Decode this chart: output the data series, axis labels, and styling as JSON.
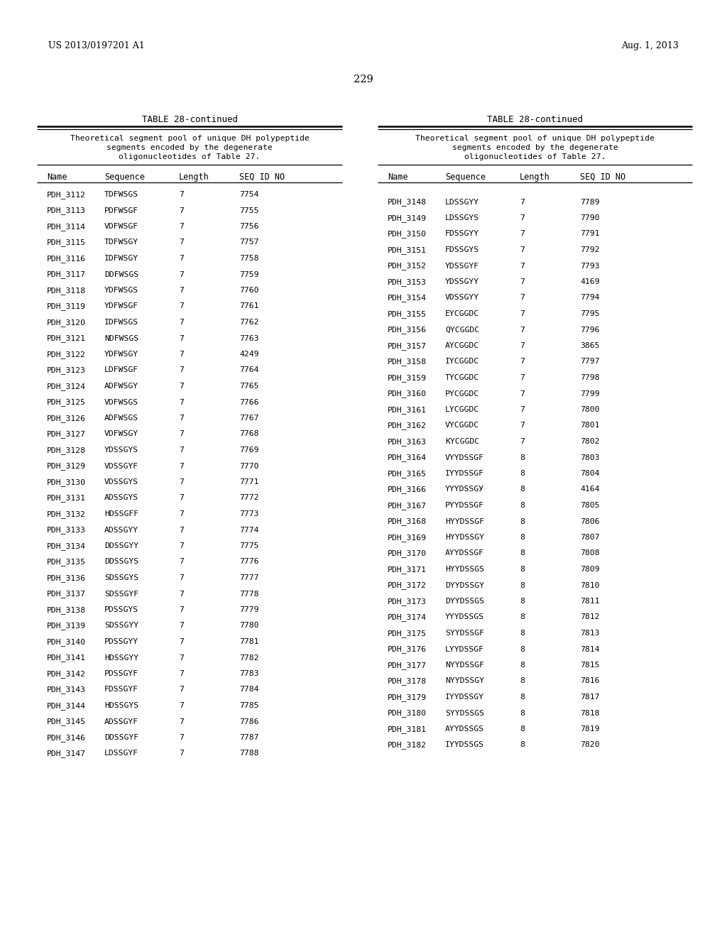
{
  "page_header_left": "US 2013/0197201 A1",
  "page_header_right": "Aug. 1, 2013",
  "page_number": "229",
  "table_title": "TABLE 28-continued",
  "table_description_lines": [
    "Theoretical segment pool of unique DH polypeptide",
    "segments encoded by the degenerate",
    "oligonucleotides of Table 27."
  ],
  "col_headers": [
    "Name",
    "Sequence",
    "Length",
    "SEQ ID NO"
  ],
  "left_data": [
    [
      "PDH_3112",
      "TDFWSGS",
      "7",
      "7754"
    ],
    [
      "PDH_3113",
      "PDFWSGF",
      "7",
      "7755"
    ],
    [
      "PDH_3114",
      "VDFWSGF",
      "7",
      "7756"
    ],
    [
      "PDH_3115",
      "TDFWSGY",
      "7",
      "7757"
    ],
    [
      "PDH_3116",
      "IDFWSGY",
      "7",
      "7758"
    ],
    [
      "PDH_3117",
      "DDFWSGS",
      "7",
      "7759"
    ],
    [
      "PDH_3118",
      "YDFWSGS",
      "7",
      "7760"
    ],
    [
      "PDH_3119",
      "YDFWSGF",
      "7",
      "7761"
    ],
    [
      "PDH_3120",
      "IDFWSGS",
      "7",
      "7762"
    ],
    [
      "PDH_3121",
      "NDFWSGS",
      "7",
      "7763"
    ],
    [
      "PDH_3122",
      "YDFWSGY",
      "7",
      "4249"
    ],
    [
      "PDH_3123",
      "LDFWSGF",
      "7",
      "7764"
    ],
    [
      "PDH_3124",
      "ADFWSGY",
      "7",
      "7765"
    ],
    [
      "PDH_3125",
      "VDFWSGS",
      "7",
      "7766"
    ],
    [
      "PDH_3126",
      "ADFWSGS",
      "7",
      "7767"
    ],
    [
      "PDH_3127",
      "VDFWSGY",
      "7",
      "7768"
    ],
    [
      "PDH_3128",
      "YDSSGYS",
      "7",
      "7769"
    ],
    [
      "PDH_3129",
      "VDSSGYF",
      "7",
      "7770"
    ],
    [
      "PDH_3130",
      "VDSSGYS",
      "7",
      "7771"
    ],
    [
      "PDH_3131",
      "ADSSGYS",
      "7",
      "7772"
    ],
    [
      "PDH_3132",
      "HDSSGFF",
      "7",
      "7773"
    ],
    [
      "PDH_3133",
      "ADSSGYY",
      "7",
      "7774"
    ],
    [
      "PDH_3134",
      "DDSSGYY",
      "7",
      "7775"
    ],
    [
      "PDH_3135",
      "DDSSGYS",
      "7",
      "7776"
    ],
    [
      "PDH_3136",
      "SDSSGYS",
      "7",
      "7777"
    ],
    [
      "PDH_3137",
      "SDSSGYF",
      "7",
      "7778"
    ],
    [
      "PDH_3138",
      "PDSSGYS",
      "7",
      "7779"
    ],
    [
      "PDH_3139",
      "SDSSGYY",
      "7",
      "7780"
    ],
    [
      "PDH_3140",
      "PDSSGYY",
      "7",
      "7781"
    ],
    [
      "PDH_3141",
      "HDSSGYY",
      "7",
      "7782"
    ],
    [
      "PDH_3142",
      "PDSSGYF",
      "7",
      "7783"
    ],
    [
      "PDH_3143",
      "FDSSGYF",
      "7",
      "7784"
    ],
    [
      "PDH_3144",
      "HDSSGYS",
      "7",
      "7785"
    ],
    [
      "PDH_3145",
      "ADSSGYF",
      "7",
      "7786"
    ],
    [
      "PDH_3146",
      "DDSSGYF",
      "7",
      "7787"
    ],
    [
      "PDH_3147",
      "LDSSGYF",
      "7",
      "7788"
    ]
  ],
  "right_data": [
    [
      "PDH_3148",
      "LDSSGYY",
      "7",
      "7789"
    ],
    [
      "PDH_3149",
      "LDSSGYS",
      "7",
      "7790"
    ],
    [
      "PDH_3150",
      "FDSSGYY",
      "7",
      "7791"
    ],
    [
      "PDH_3151",
      "FDSSGYS",
      "7",
      "7792"
    ],
    [
      "PDH_3152",
      "YDSSGYF",
      "7",
      "7793"
    ],
    [
      "PDH_3153",
      "YDSSGYY",
      "7",
      "4169"
    ],
    [
      "PDH_3154",
      "VDSSGYY",
      "7",
      "7794"
    ],
    [
      "PDH_3155",
      "EYCGGDC",
      "7",
      "7795"
    ],
    [
      "PDH_3156",
      "QYCGGDC",
      "7",
      "7796"
    ],
    [
      "PDH_3157",
      "AYCGGDC",
      "7",
      "3865"
    ],
    [
      "PDH_3158",
      "IYCGGDC",
      "7",
      "7797"
    ],
    [
      "PDH_3159",
      "TYCGGDC",
      "7",
      "7798"
    ],
    [
      "PDH_3160",
      "PYCGGDC",
      "7",
      "7799"
    ],
    [
      "PDH_3161",
      "LYCGGDC",
      "7",
      "7800"
    ],
    [
      "PDH_3162",
      "VYCGGDC",
      "7",
      "7801"
    ],
    [
      "PDH_3163",
      "KYCGGDC",
      "7",
      "7802"
    ],
    [
      "PDH_3164",
      "VYYDSSGF",
      "8",
      "7803"
    ],
    [
      "PDH_3165",
      "IYYDSSGF",
      "8",
      "7804"
    ],
    [
      "PDH_3166",
      "YYYDSSGУ",
      "8",
      "4164"
    ],
    [
      "PDH_3167",
      "PYYDSSGF",
      "8",
      "7805"
    ],
    [
      "PDH_3168",
      "HYYDSSGF",
      "8",
      "7806"
    ],
    [
      "PDH_3169",
      "HYYDSSGY",
      "8",
      "7807"
    ],
    [
      "PDH_3170",
      "AYYDSSGF",
      "8",
      "7808"
    ],
    [
      "PDH_3171",
      "HYYDSSGS",
      "8",
      "7809"
    ],
    [
      "PDH_3172",
      "DYYDSSGY",
      "8",
      "7810"
    ],
    [
      "PDH_3173",
      "DYYDSSGS",
      "8",
      "7811"
    ],
    [
      "PDH_3174",
      "YYYDSSGS",
      "8",
      "7812"
    ],
    [
      "PDH_3175",
      "SYYDSSGF",
      "8",
      "7813"
    ],
    [
      "PDH_3176",
      "LYYDSSGF",
      "8",
      "7814"
    ],
    [
      "PDH_3177",
      "NYYDSSGF",
      "8",
      "7815"
    ],
    [
      "PDH_3178",
      "NYYDSSGY",
      "8",
      "7816"
    ],
    [
      "PDH_3179",
      "IYYDSSGY",
      "8",
      "7817"
    ],
    [
      "PDH_3180",
      "SYYDSSGS",
      "8",
      "7818"
    ],
    [
      "PDH_3181",
      "AYYDSSGS",
      "8",
      "7819"
    ],
    [
      "PDH_3182",
      "IYYDSSGS",
      "8",
      "7820"
    ]
  ],
  "background_color": "#ffffff",
  "text_color": "#000000"
}
